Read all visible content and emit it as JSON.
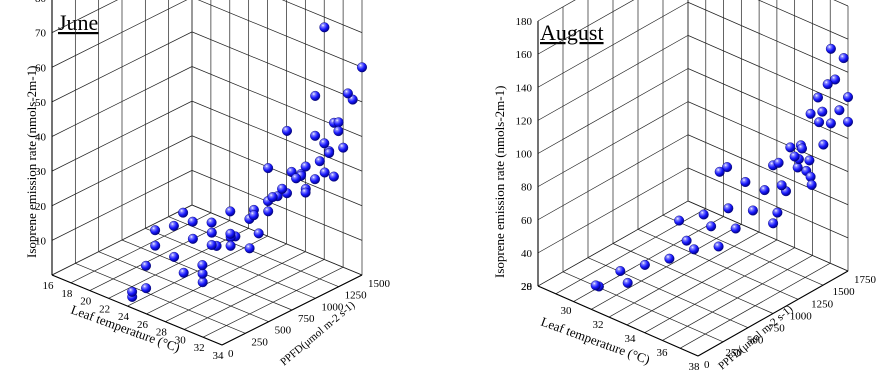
{
  "chart_data": [
    {
      "type": "scatter3d",
      "title": "June",
      "xlabel": "Leaf temperature (°C)",
      "ylabel": "PPFD(μmol m-2 s-1)",
      "zlabel": "Isoprene emission rate (nmols-2m-1)",
      "xlim": [
        16,
        34
      ],
      "ylim": [
        0,
        1500
      ],
      "zlim": [
        0,
        80
      ],
      "xticks": [
        16,
        18,
        20,
        22,
        24,
        26,
        28,
        30,
        32,
        34
      ],
      "yticks": [
        0,
        250,
        500,
        750,
        1000,
        1250,
        1500
      ],
      "zticks": [
        10,
        20,
        30,
        40,
        50,
        60,
        70,
        80
      ],
      "marker_color": "#1a1aff",
      "series": [
        {
          "points": [
            [
              23,
              150,
              1
            ],
            [
              23,
              300,
              0
            ],
            [
              24,
              50,
              2
            ],
            [
              22,
              400,
              4
            ],
            [
              21,
              600,
              6
            ],
            [
              20,
              700,
              8
            ],
            [
              21,
              800,
              9
            ],
            [
              20,
              1000,
              9
            ],
            [
              22,
              900,
              10
            ],
            [
              24,
              700,
              10
            ],
            [
              23,
              600,
              5
            ],
            [
              25,
              500,
              4
            ],
            [
              26,
              600,
              6
            ],
            [
              25,
              800,
              8
            ],
            [
              27,
              500,
              6
            ],
            [
              27,
              800,
              10
            ],
            [
              26,
              900,
              11
            ],
            [
              28,
              400,
              6
            ],
            [
              28,
              1000,
              12
            ],
            [
              26,
              1150,
              13
            ],
            [
              27,
              1250,
              18
            ],
            [
              28,
              1100,
              20
            ],
            [
              29,
              1300,
              25
            ],
            [
              30,
              1300,
              22
            ],
            [
              31,
              1300,
              27
            ],
            [
              30,
              1150,
              30
            ],
            [
              31,
              1200,
              32
            ],
            [
              32,
              1250,
              34
            ],
            [
              32,
              1350,
              35
            ],
            [
              33,
              1300,
              30
            ],
            [
              31,
              1400,
              36
            ],
            [
              32,
              1450,
              40
            ],
            [
              33,
              1400,
              37
            ],
            [
              33,
              1250,
              38
            ],
            [
              32,
              1100,
              28
            ],
            [
              31,
              1000,
              27
            ],
            [
              30,
              900,
              22
            ],
            [
              30,
              1000,
              25
            ],
            [
              29,
              800,
              20
            ],
            [
              29,
              1000,
              32
            ],
            [
              30,
              700,
              14
            ],
            [
              32,
              1200,
              42
            ],
            [
              33,
              1350,
              45
            ],
            [
              34,
              1200,
              48
            ],
            [
              34,
              1400,
              52
            ],
            [
              33,
              1450,
              52
            ],
            [
              33,
              1100,
              56
            ],
            [
              34,
              1500,
              60
            ],
            [
              34,
              1100,
              35
            ],
            [
              31,
              1000,
              45
            ],
            [
              32,
              1300,
              72
            ],
            [
              28,
              700,
              15
            ],
            [
              29,
              650,
              17
            ],
            [
              27,
              650,
              12
            ],
            [
              26,
              700,
              14
            ],
            [
              24,
              900,
              12
            ],
            [
              25,
              1000,
              15
            ],
            [
              27,
              1050,
              17
            ],
            [
              29,
              1150,
              24
            ],
            [
              31,
              1150,
              30
            ],
            [
              32,
              1050,
              33
            ]
          ]
        }
      ]
    },
    {
      "type": "scatter3d",
      "title": "August",
      "xlabel": "Leaf temperature (°C)",
      "ylabel": "PPFD(μmol m-2 s-1)",
      "zlabel": "Isoprene emission rate (nmols-2m-1)",
      "xlim": [
        28,
        38
      ],
      "ylim": [
        0,
        1750
      ],
      "zlim": [
        20,
        180
      ],
      "xticks": [
        30,
        32,
        34,
        36,
        38
      ],
      "yticks": [
        0,
        250,
        500,
        750,
        1000,
        1250,
        1500,
        1750
      ],
      "zticks": [
        20,
        40,
        60,
        80,
        100,
        120,
        140,
        160,
        180
      ],
      "zticks_left": [
        28
      ],
      "marker_color": "#1a1aff",
      "series": [
        {
          "points": [
            [
              30,
              300,
              20
            ],
            [
              31,
              400,
              30
            ],
            [
              31,
              150,
              28
            ],
            [
              32,
              300,
              30
            ],
            [
              32,
              500,
              35
            ],
            [
              33,
              600,
              40
            ],
            [
              33,
              800,
              45
            ],
            [
              34,
              700,
              47
            ],
            [
              34,
              900,
              55
            ],
            [
              35,
              1000,
              55
            ],
            [
              35,
              800,
              50
            ],
            [
              34,
              1100,
              60
            ],
            [
              33,
              1000,
              55
            ],
            [
              32,
              900,
              50
            ],
            [
              35,
              1200,
              60
            ],
            [
              36,
              1300,
              60
            ],
            [
              36,
              1250,
              55
            ],
            [
              35,
              1500,
              80
            ],
            [
              36,
              1400,
              70
            ],
            [
              37,
              1450,
              85
            ],
            [
              37,
              1500,
              80
            ],
            [
              36,
              1550,
              85
            ],
            [
              36,
              1700,
              65
            ],
            [
              37,
              1350,
              90
            ],
            [
              37,
              1650,
              95
            ],
            [
              37,
              1400,
              100
            ],
            [
              37,
              1600,
              110
            ],
            [
              38,
              1550,
              115
            ],
            [
              38,
              1450,
              125
            ],
            [
              38,
              1650,
              120
            ],
            [
              37,
              1700,
              130
            ],
            [
              38,
              1750,
              125
            ],
            [
              38,
              1600,
              140
            ],
            [
              38,
              1700,
              150
            ],
            [
              38,
              1550,
              160
            ],
            [
              38,
              1400,
              135
            ],
            [
              37,
              1500,
              118
            ],
            [
              38,
              1750,
              110
            ],
            [
              38,
              1300,
              100
            ],
            [
              38,
              1200,
              112
            ],
            [
              36,
              1350,
              75
            ],
            [
              36,
              1250,
              90
            ],
            [
              36,
              1150,
              78
            ],
            [
              36,
              1450,
              95
            ],
            [
              36,
              1500,
              88
            ],
            [
              35,
              900,
              95
            ],
            [
              34,
              1000,
              85
            ],
            [
              34,
              1300,
              70
            ]
          ]
        }
      ]
    }
  ]
}
